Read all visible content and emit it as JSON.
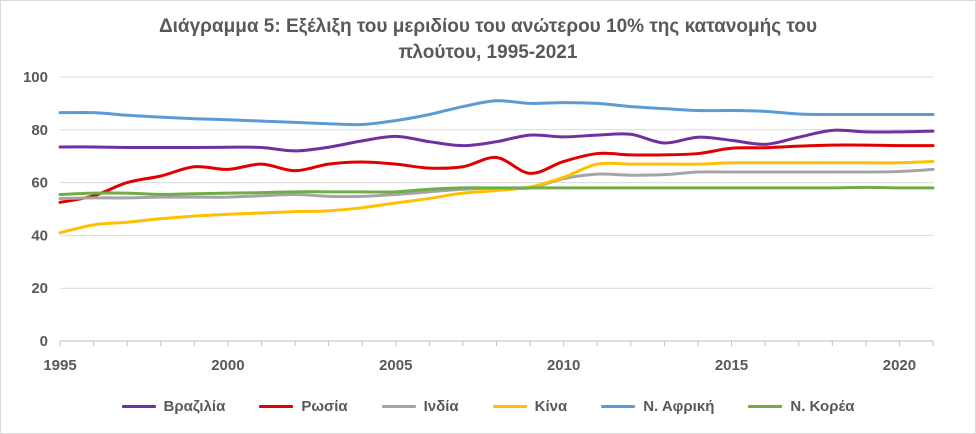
{
  "chart_data": {
    "type": "line",
    "title_lines": [
      "Διάγραμμα 5: Εξέλιξη του μεριδίου του ανώτερου 10% της κατανομής του",
      "πλούτου, 1995-2021"
    ],
    "xlabel": "",
    "ylabel": "",
    "xlim": [
      1995,
      2021
    ],
    "ylim": [
      0,
      100
    ],
    "x_ticks": [
      "1995",
      "2000",
      "2005",
      "2010",
      "2015",
      "2020"
    ],
    "y_ticks": [
      "0",
      "20",
      "40",
      "60",
      "80",
      "100"
    ],
    "grid": "horizontal",
    "legend_position": "bottom",
    "x": [
      1995,
      1996,
      1997,
      1998,
      1999,
      2000,
      2001,
      2002,
      2003,
      2004,
      2005,
      2006,
      2007,
      2008,
      2009,
      2010,
      2011,
      2012,
      2013,
      2014,
      2015,
      2016,
      2017,
      2018,
      2019,
      2020,
      2021
    ],
    "series": [
      {
        "name": "Βραζιλία",
        "color": "#7030a0",
        "values": [
          73.5,
          73.5,
          73.3,
          73.3,
          73.3,
          73.4,
          73.3,
          72.0,
          73.4,
          75.8,
          77.5,
          75.5,
          74.0,
          75.5,
          78.0,
          77.3,
          78.0,
          78.3,
          75.0,
          77.2,
          76.0,
          74.5,
          77.2,
          79.8,
          79.2,
          79.2,
          79.5
        ]
      },
      {
        "name": "Ρωσία",
        "color": "#e00000",
        "values": [
          52.5,
          55.0,
          60.0,
          62.5,
          66.0,
          65.0,
          67.0,
          64.5,
          67.0,
          67.8,
          67.0,
          65.5,
          66.0,
          69.5,
          63.5,
          68.0,
          71.0,
          70.5,
          70.5,
          71.0,
          73.0,
          73.2,
          73.8,
          74.2,
          74.2,
          74.0,
          74.0
        ]
      },
      {
        "name": "Ινδία",
        "color": "#a5a5a5",
        "values": [
          54.0,
          54.2,
          54.2,
          54.5,
          54.5,
          54.5,
          55.0,
          55.5,
          54.8,
          54.8,
          55.5,
          56.5,
          57.5,
          58.0,
          58.0,
          61.5,
          63.2,
          62.8,
          63.0,
          64.0,
          64.0,
          64.0,
          64.0,
          64.0,
          64.0,
          64.2,
          65.0
        ]
      },
      {
        "name": "Κίνα",
        "color": "#ffc000",
        "values": [
          41.0,
          44.0,
          45.0,
          46.3,
          47.3,
          48.0,
          48.5,
          49.0,
          49.3,
          50.5,
          52.3,
          54.0,
          56.0,
          57.0,
          58.3,
          62.0,
          67.0,
          67.0,
          67.0,
          67.0,
          67.5,
          67.5,
          67.5,
          67.5,
          67.5,
          67.5,
          68.0
        ]
      },
      {
        "name": "Ν. Αφρική",
        "color": "#5b9bd5",
        "values": [
          86.5,
          86.5,
          85.5,
          84.8,
          84.2,
          83.8,
          83.3,
          82.8,
          82.3,
          82.0,
          83.5,
          85.8,
          88.8,
          91.0,
          90.0,
          90.3,
          90.0,
          88.8,
          88.0,
          87.3,
          87.3,
          87.0,
          86.0,
          85.8,
          85.8,
          85.8,
          85.8
        ]
      },
      {
        "name": "Ν. Κορέα",
        "color": "#70ad47",
        "values": [
          55.5,
          56.0,
          56.0,
          55.5,
          55.8,
          56.0,
          56.2,
          56.5,
          56.5,
          56.5,
          56.5,
          57.5,
          58.0,
          58.0,
          58.0,
          58.0,
          58.0,
          58.0,
          58.0,
          58.0,
          58.0,
          58.0,
          58.0,
          58.0,
          58.2,
          58.0,
          58.0
        ]
      }
    ]
  }
}
